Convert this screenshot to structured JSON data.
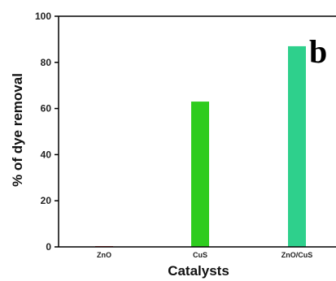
{
  "chart_data": {
    "type": "bar",
    "categories": [
      "ZnO",
      "CuS",
      "ZnO/CuS"
    ],
    "values": [
      0.3,
      63,
      87
    ],
    "colors": [
      "#e03030",
      "#2ecc1e",
      "#2ed08c"
    ],
    "xlabel": "Catalysts",
    "ylabel": "% of dye removal",
    "ylim": [
      0,
      100
    ],
    "yticks": [
      "0",
      "20",
      "40",
      "60",
      "80",
      "100"
    ],
    "panel_label": "b"
  }
}
